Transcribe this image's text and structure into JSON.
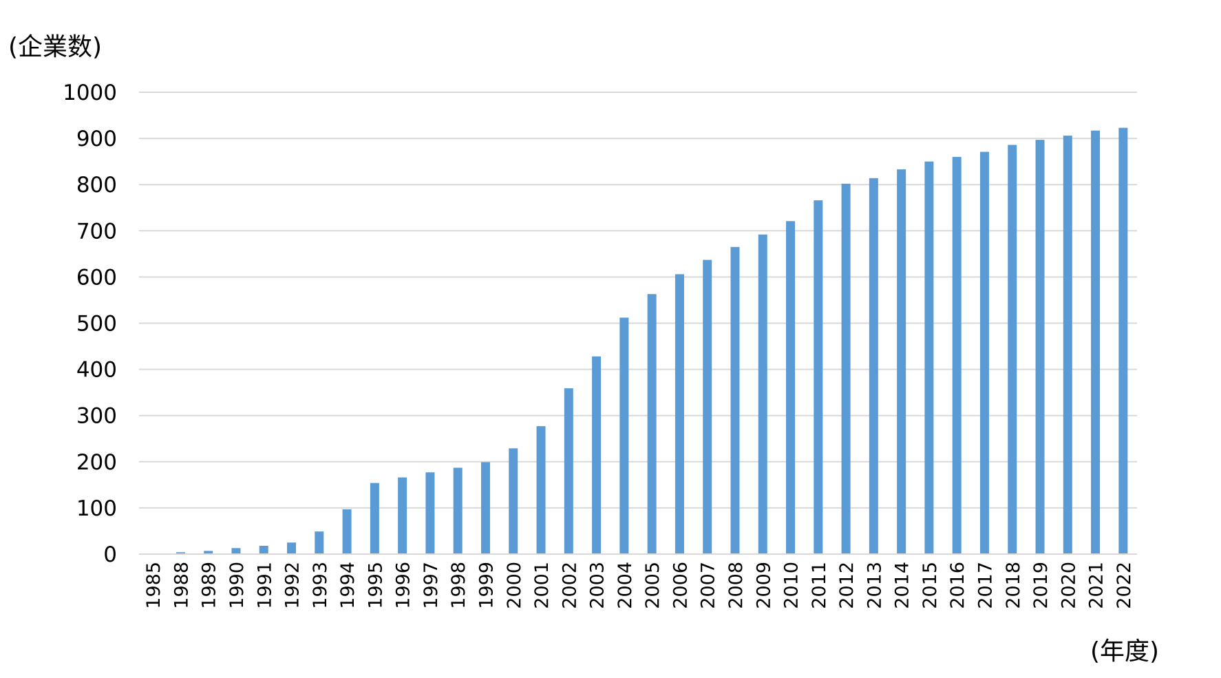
{
  "chart_data": {
    "type": "bar",
    "ylabel": "(企業数)",
    "xlabel": "(年度)",
    "ylim": [
      0,
      1000
    ],
    "yticks": [
      0,
      100,
      200,
      300,
      400,
      500,
      600,
      700,
      800,
      900,
      1000
    ],
    "grid": true,
    "bar_color": "#5b9bd5",
    "grid_color": "#d9d9d9",
    "categories": [
      "1985",
      "1988",
      "1989",
      "1990",
      "1991",
      "1992",
      "1993",
      "1994",
      "1995",
      "1996",
      "1997",
      "1998",
      "1999",
      "2000",
      "2001",
      "2002",
      "2003",
      "2004",
      "2005",
      "2006",
      "2007",
      "2008",
      "2009",
      "2010",
      "2011",
      "2012",
      "2013",
      "2014",
      "2015",
      "2016",
      "2017",
      "2018",
      "2019",
      "2020",
      "2021",
      "2022"
    ],
    "values": [
      1,
      4,
      7,
      13,
      18,
      25,
      49,
      97,
      154,
      166,
      177,
      187,
      199,
      229,
      277,
      359,
      428,
      512,
      563,
      606,
      637,
      665,
      692,
      721,
      766,
      802,
      814,
      833,
      850,
      860,
      871,
      886,
      897,
      906,
      917,
      923
    ]
  }
}
